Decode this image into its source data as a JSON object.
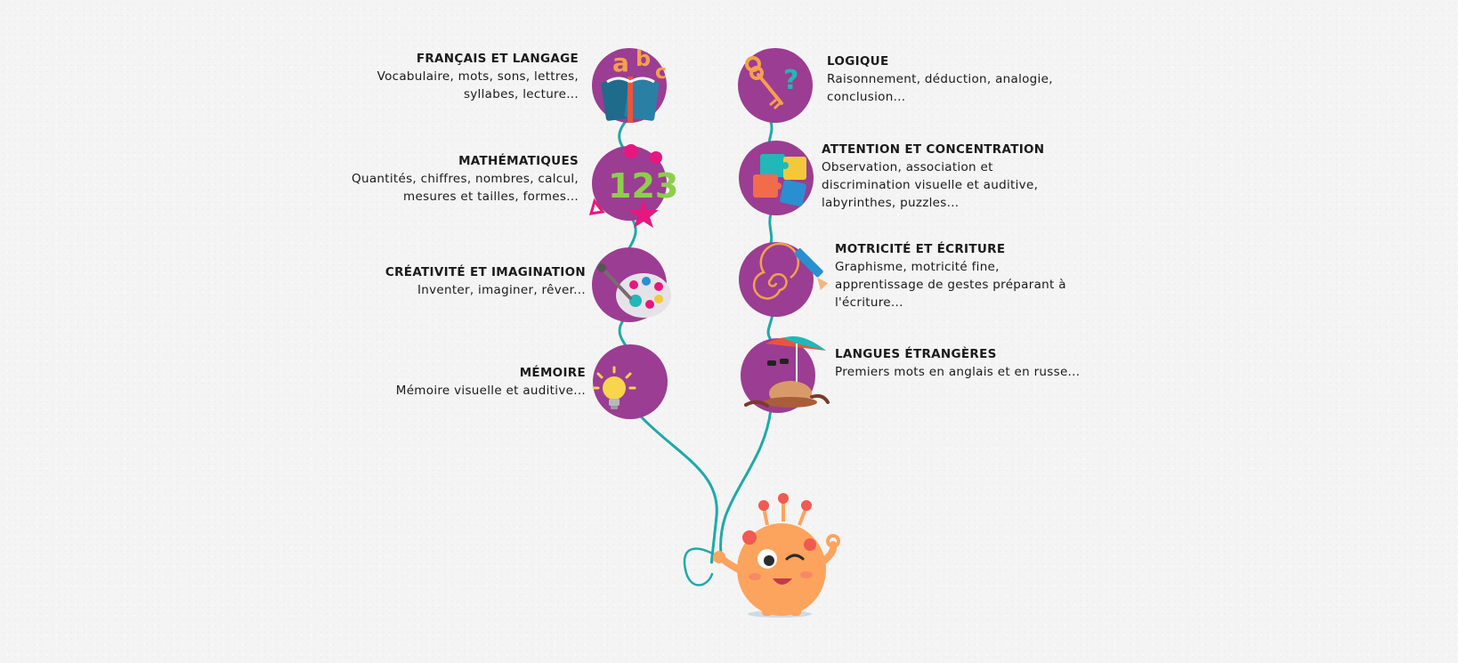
{
  "skills": {
    "francais": {
      "title": "FRANÇAIS ET LANGAGE",
      "desc_lines": [
        "Vocabulaire, mots, sons, lettres,",
        "syllabes, lecture..."
      ],
      "icon": "abc-book-icon"
    },
    "maths": {
      "title": "MATHÉMATIQUES",
      "desc_lines": [
        "Quantités, chiffres, nombres, calcul,",
        "mesures et tailles, formes..."
      ],
      "icon": "numbers-123-icon"
    },
    "creativite": {
      "title": "CRÉATIVITÉ ET IMAGINATION",
      "desc_lines": [
        "Inventer, imaginer, rêver..."
      ],
      "icon": "paint-palette-icon"
    },
    "memoire": {
      "title": "MÉMOIRE",
      "desc_lines": [
        "Mémoire visuelle et auditive..."
      ],
      "icon": "lightbulb-icon"
    },
    "logique": {
      "title": "LOGIQUE",
      "desc_lines": [
        "Raisonnement, déduction, analogie,",
        "conclusion..."
      ],
      "icon": "key-question-icon"
    },
    "attention": {
      "title": "ATTENTION ET CONCENTRATION",
      "desc_lines": [
        "Observation, association et",
        "discrimination visuelle et auditive,",
        "labyrinthes, puzzles..."
      ],
      "icon": "puzzle-icon"
    },
    "motricite": {
      "title": "MOTRICITÉ ET ÉCRITURE",
      "desc_lines": [
        "Graphisme, motricité fine,",
        "apprentissage de gestes préparant à",
        "l'écriture..."
      ],
      "icon": "spiral-pencil-icon"
    },
    "langues": {
      "title": "LANGUES ÉTRANGÈRES",
      "desc_lines": [
        "Premiers mots en anglais et en russe..."
      ],
      "icon": "parasol-hat-icon"
    }
  },
  "colors": {
    "balloon": "#9b3d92",
    "string": "#1fa9a9",
    "monster": "#fca45e",
    "monster_spots": "#f05a50"
  },
  "mascot": {
    "icon": "orange-monster-mascot"
  }
}
